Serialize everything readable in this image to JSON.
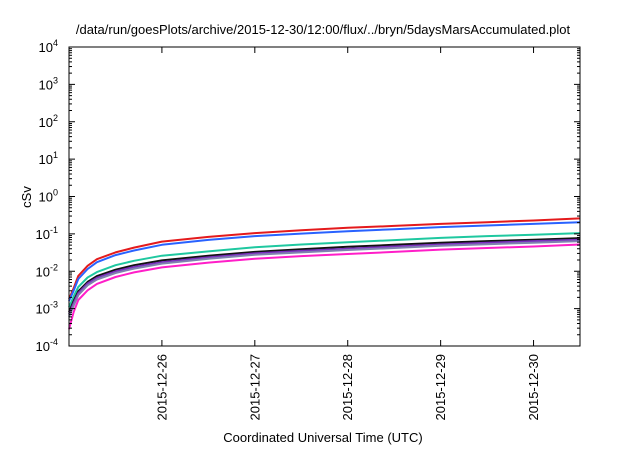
{
  "chart_data": {
    "type": "line",
    "title": "/data/run/goesPlots/archive/2015-12-30/12:00/flux/../bryn/5daysMarsAccumulated.plot",
    "xlabel": "Coordinated Universal Time (UTC)",
    "ylabel": "cSv",
    "y_scale": "log",
    "ylim": [
      0.0001,
      10000
    ],
    "y_ticks": [
      {
        "value": 0.0001,
        "base": "10",
        "exp": "-4"
      },
      {
        "value": 0.001,
        "base": "10",
        "exp": "-3"
      },
      {
        "value": 0.01,
        "base": "10",
        "exp": "-2"
      },
      {
        "value": 0.1,
        "base": "10",
        "exp": "-1"
      },
      {
        "value": 1,
        "base": "10",
        "exp": "0"
      },
      {
        "value": 10,
        "base": "10",
        "exp": "1"
      },
      {
        "value": 100,
        "base": "10",
        "exp": "2"
      },
      {
        "value": 1000,
        "base": "10",
        "exp": "3"
      },
      {
        "value": 10000,
        "base": "10",
        "exp": "4"
      }
    ],
    "x_unit": "day",
    "xlim": [
      "2015-12-25T00:00",
      "2015-12-30T12:00"
    ],
    "x_ticks": [
      "2015-12-26",
      "2015-12-27",
      "2015-12-28",
      "2015-12-29",
      "2015-12-30"
    ],
    "grid": false,
    "legend": "none",
    "x": [
      "2015-12-25T00:00",
      "2015-12-25T01:12",
      "2015-12-25T02:24",
      "2015-12-25T04:48",
      "2015-12-25T07:12",
      "2015-12-25T12:00",
      "2015-12-25T16:48",
      "2015-12-26T00:00",
      "2015-12-26T12:00",
      "2015-12-27T00:00",
      "2015-12-27T12:00",
      "2015-12-28T00:00",
      "2015-12-28T12:00",
      "2015-12-29T00:00",
      "2015-12-29T12:00",
      "2015-12-30T00:00",
      "2015-12-30T12:00"
    ],
    "series": [
      {
        "color": "#e41a1c",
        "values": [
          0.0018,
          0.0035,
          0.0075,
          0.014,
          0.021,
          0.032,
          0.043,
          0.062,
          0.083,
          0.105,
          0.125,
          0.145,
          0.163,
          0.185,
          0.205,
          0.228,
          0.26
        ]
      },
      {
        "color": "#2962ff",
        "values": [
          0.0016,
          0.003,
          0.0062,
          0.0115,
          0.0175,
          0.027,
          0.036,
          0.051,
          0.069,
          0.087,
          0.102,
          0.118,
          0.133,
          0.152,
          0.168,
          0.185,
          0.205
        ]
      },
      {
        "color": "#1fc8a0",
        "values": [
          0.0011,
          0.0021,
          0.0038,
          0.0068,
          0.0095,
          0.0145,
          0.019,
          0.026,
          0.034,
          0.044,
          0.052,
          0.06,
          0.068,
          0.078,
          0.087,
          0.095,
          0.105
        ]
      },
      {
        "color": "#111111",
        "values": [
          0.0008,
          0.0016,
          0.0029,
          0.0052,
          0.0074,
          0.011,
          0.0145,
          0.0195,
          0.026,
          0.033,
          0.039,
          0.045,
          0.051,
          0.058,
          0.064,
          0.07,
          0.077
        ]
      },
      {
        "color": "#7b2fbe",
        "values": [
          0.0007,
          0.0014,
          0.0026,
          0.0047,
          0.0067,
          0.0099,
          0.013,
          0.0175,
          0.0235,
          0.03,
          0.035,
          0.04,
          0.046,
          0.052,
          0.058,
          0.064,
          0.07
        ]
      },
      {
        "color": "#8080b0",
        "values": [
          0.0006,
          0.0012,
          0.0023,
          0.0042,
          0.006,
          0.009,
          0.0118,
          0.016,
          0.0215,
          0.0275,
          0.032,
          0.037,
          0.042,
          0.048,
          0.053,
          0.058,
          0.064
        ]
      },
      {
        "color": "#ff1ec8",
        "values": [
          0.00028,
          0.0008,
          0.0017,
          0.0031,
          0.0046,
          0.007,
          0.0093,
          0.0127,
          0.017,
          0.0215,
          0.0255,
          0.029,
          0.033,
          0.038,
          0.042,
          0.046,
          0.052
        ]
      }
    ]
  }
}
